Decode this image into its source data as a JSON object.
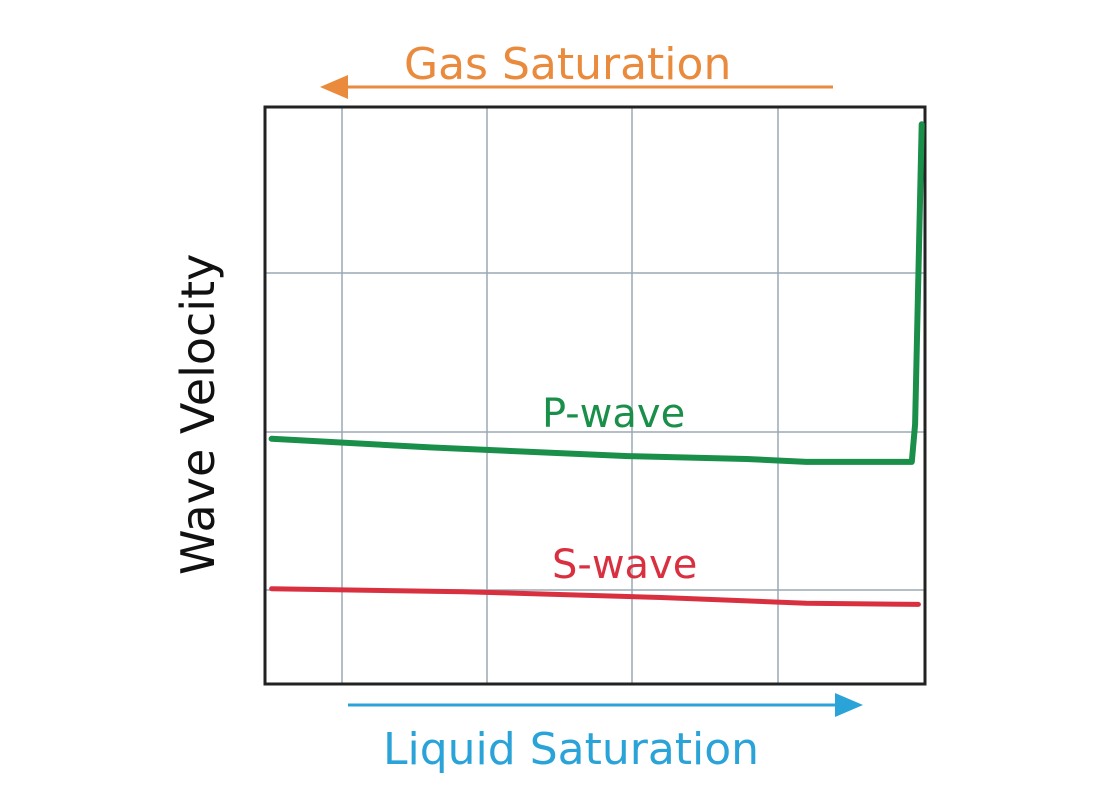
{
  "chart_data": {
    "type": "line",
    "xlabel": "Liquid Saturation",
    "xlabel_top": "Gas Saturation",
    "ylabel": "Wave Velocity",
    "xlim": [
      0,
      1
    ],
    "ylim": [
      0,
      1
    ],
    "grid": true,
    "series": [
      {
        "name": "P-wave",
        "color": "#1a8f4a",
        "x": [
          0.01,
          0.25,
          0.55,
          0.73,
          0.82,
          0.98,
          0.985,
          0.995
        ],
        "y": [
          0.425,
          0.41,
          0.395,
          0.39,
          0.385,
          0.385,
          0.45,
          0.97
        ]
      },
      {
        "name": "S-wave",
        "color": "#d93040",
        "x": [
          0.01,
          0.3,
          0.6,
          0.82,
          0.99
        ],
        "y": [
          0.165,
          0.16,
          0.15,
          0.14,
          0.138
        ]
      }
    ],
    "arrows": {
      "top_color": "#e98a3c",
      "bottom_color": "#2aa3d8"
    }
  }
}
